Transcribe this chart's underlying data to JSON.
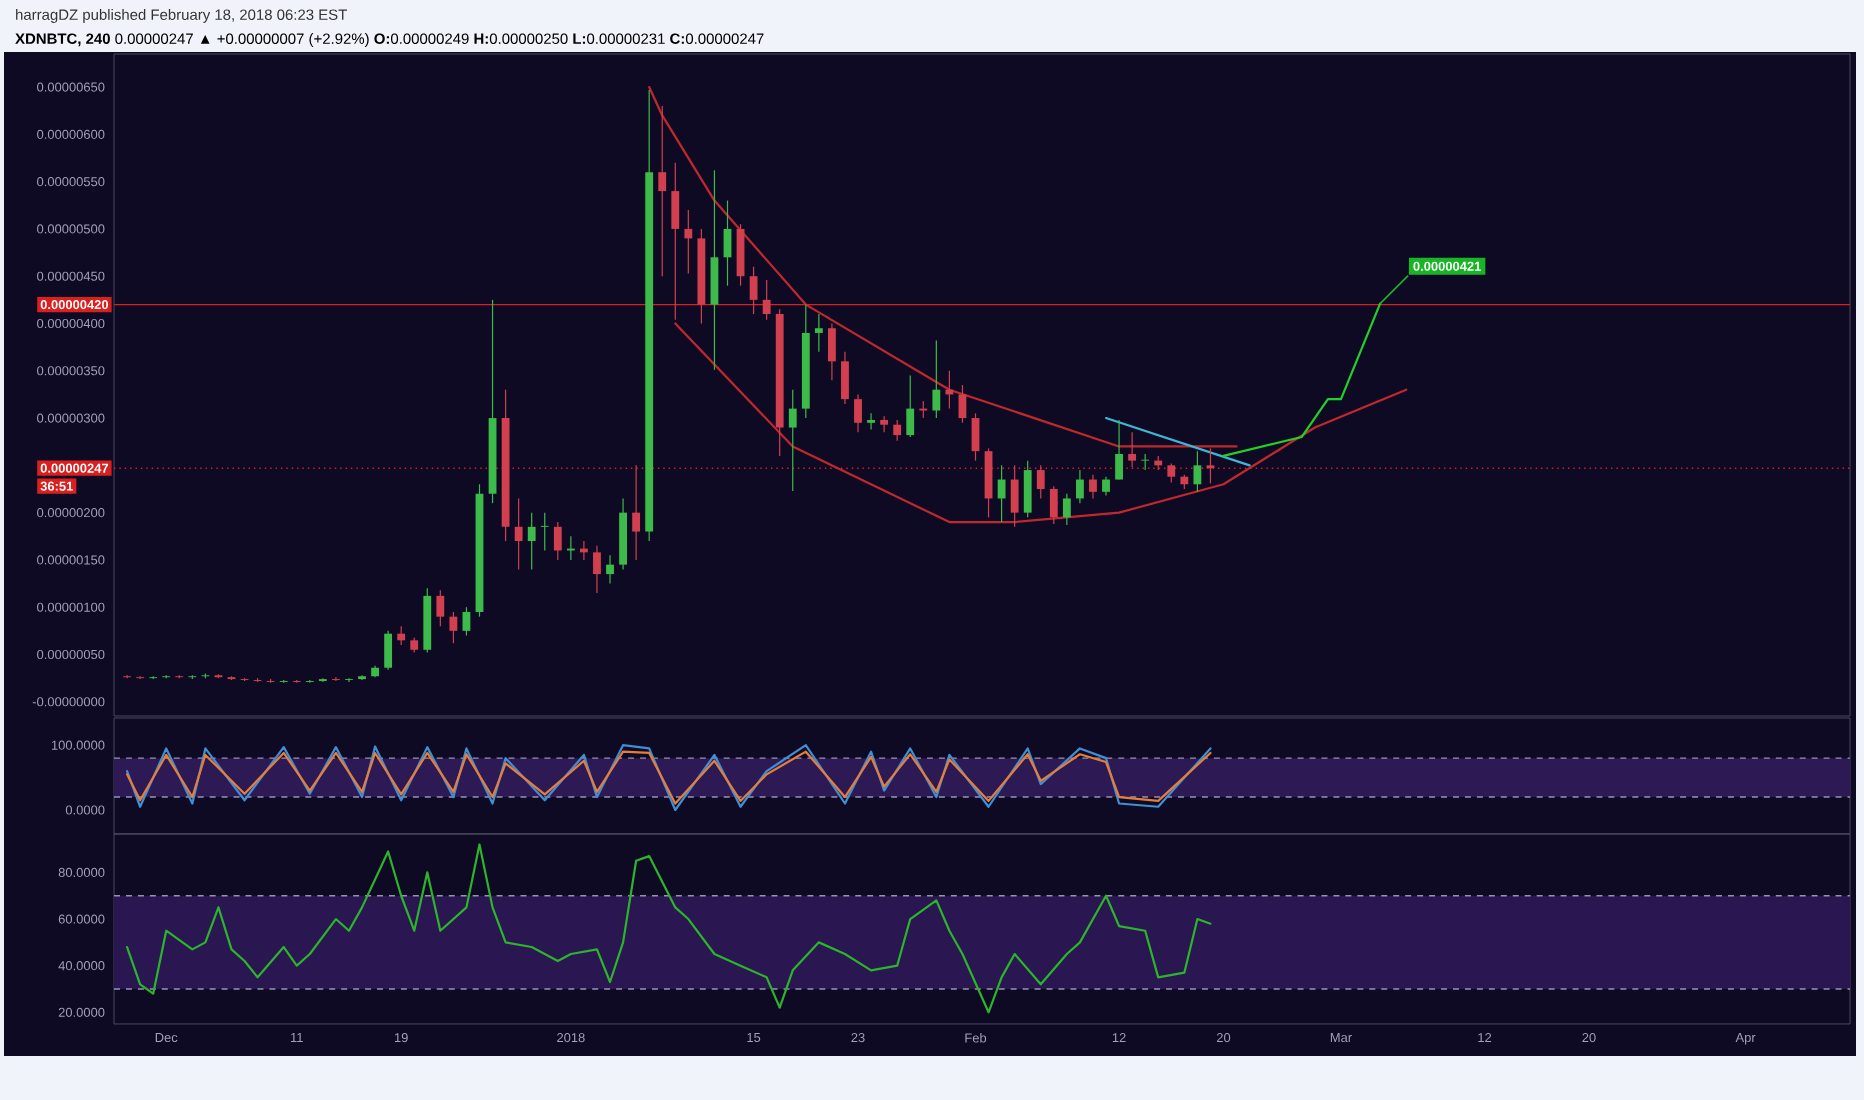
{
  "chart_data": [
    {
      "type": "candlestick",
      "title": "harragDZ published February 18, 2018 06:23 EST",
      "subtitle": "**XDNBTC, 240** 0.00000247 ▲ +0.00000007 (+2.92%) **O:**0.00000249 **H:**0.00000250 **L:**0.00000231 **C:**0.00000247",
      "x": [
        "2017-11-28",
        "2017-11-29",
        "2017-11-30",
        "2017-12-01",
        "2017-12-02",
        "2017-12-03",
        "2017-12-04",
        "2017-12-05",
        "2017-12-06",
        "2017-12-07",
        "2017-12-08",
        "2017-12-09",
        "2017-12-10",
        "2017-12-11",
        "2017-12-12",
        "2017-12-13",
        "2017-12-14",
        "2017-12-15",
        "2017-12-16",
        "2017-12-17",
        "2017-12-18",
        "2017-12-19",
        "2017-12-20",
        "2017-12-21",
        "2017-12-22",
        "2017-12-23",
        "2017-12-24",
        "2017-12-25",
        "2017-12-26",
        "2017-12-27",
        "2017-12-28",
        "2017-12-29",
        "2017-12-30",
        "2017-12-31",
        "2018-01-01",
        "2018-01-02",
        "2018-01-03",
        "2018-01-04",
        "2018-01-05",
        "2018-01-06",
        "2018-01-07",
        "2018-01-08",
        "2018-01-09",
        "2018-01-10",
        "2018-01-11",
        "2018-01-12",
        "2018-01-13",
        "2018-01-14",
        "2018-01-15",
        "2018-01-16",
        "2018-01-17",
        "2018-01-18",
        "2018-01-19",
        "2018-01-20",
        "2018-01-21",
        "2018-01-22",
        "2018-01-23",
        "2018-01-24",
        "2018-01-25",
        "2018-01-26",
        "2018-01-27",
        "2018-01-28",
        "2018-01-29",
        "2018-01-30",
        "2018-01-31",
        "2018-02-01",
        "2018-02-02",
        "2018-02-03",
        "2018-02-04",
        "2018-02-05",
        "2018-02-06",
        "2018-02-07",
        "2018-02-08",
        "2018-02-09",
        "2018-02-10",
        "2018-02-11",
        "2018-02-12",
        "2018-02-13",
        "2018-02-14",
        "2018-02-15",
        "2018-02-16",
        "2018-02-17",
        "2018-02-18",
        "2018-02-19"
      ],
      "ohlc": [
        [
          2.7e-07,
          2.8e-07,
          2.5e-07,
          2.6e-07
        ],
        [
          2.6e-07,
          2.7e-07,
          2.4e-07,
          2.5e-07
        ],
        [
          2.5e-07,
          2.7e-07,
          2.4e-07,
          2.6e-07
        ],
        [
          2.6e-07,
          2.8e-07,
          2.5e-07,
          2.7e-07
        ],
        [
          2.7e-07,
          2.8e-07,
          2.5e-07,
          2.6e-07
        ],
        [
          2.6e-07,
          2.8e-07,
          2.4e-07,
          2.7e-07
        ],
        [
          2.7e-07,
          3e-07,
          2.5e-07,
          2.8e-07
        ],
        [
          2.8e-07,
          2.9e-07,
          2.5e-07,
          2.6e-07
        ],
        [
          2.6e-07,
          2.7e-07,
          2.3e-07,
          2.4e-07
        ],
        [
          2.4e-07,
          2.5e-07,
          2.2e-07,
          2.3e-07
        ],
        [
          2.3e-07,
          2.5e-07,
          2.1e-07,
          2.2e-07
        ],
        [
          2.2e-07,
          2.4e-07,
          2e-07,
          2.1e-07
        ],
        [
          2.1e-07,
          2.3e-07,
          2e-07,
          2.2e-07
        ],
        [
          2.2e-07,
          2.3e-07,
          2e-07,
          2.1e-07
        ],
        [
          2.1e-07,
          2.3e-07,
          2e-07,
          2.2e-07
        ],
        [
          2.2e-07,
          2.5e-07,
          2.1e-07,
          2.4e-07
        ],
        [
          2.4e-07,
          2.6e-07,
          2.2e-07,
          2.3e-07
        ],
        [
          2.3e-07,
          2.5e-07,
          2.1e-07,
          2.4e-07
        ],
        [
          2.4e-07,
          2.8e-07,
          2.3e-07,
          2.7e-07
        ],
        [
          2.7e-07,
          3.8e-07,
          2.6e-07,
          3.6e-07
        ],
        [
          3.6e-07,
          7.5e-07,
          3.4e-07,
          7.2e-07
        ],
        [
          7.2e-07,
          8e-07,
          6e-07,
          6.5e-07
        ],
        [
          6.5e-07,
          6.8e-07,
          5.2e-07,
          5.5e-07
        ],
        [
          5.5e-07,
          1.2e-06,
          5.2e-07,
          1.12e-06
        ],
        [
          1.12e-06,
          1.18e-06,
          8e-07,
          9e-07
        ],
        [
          9e-07,
          9.5e-07,
          6.2e-07,
          7.5e-07
        ],
        [
          7.5e-07,
          1e-06,
          7e-07,
          9.5e-07
        ],
        [
          9.5e-07,
          2.3e-06,
          9e-07,
          2.2e-06
        ],
        [
          2.2e-06,
          4.25e-06,
          2.1e-06,
          3e-06
        ],
        [
          3e-06,
          3.3e-06,
          1.7e-06,
          1.85e-06
        ],
        [
          1.85e-06,
          2.15e-06,
          1.4e-06,
          1.7e-06
        ],
        [
          1.7e-06,
          2e-06,
          1.4e-06,
          1.85e-06
        ],
        [
          1.85e-06,
          2e-06,
          1.6e-06,
          1.86e-06
        ],
        [
          1.85e-06,
          1.9e-06,
          1.5e-06,
          1.6e-06
        ],
        [
          1.6e-06,
          1.75e-06,
          1.5e-06,
          1.62e-06
        ],
        [
          1.62e-06,
          1.7e-06,
          1.5e-06,
          1.58e-06
        ],
        [
          1.58e-06,
          1.65e-06,
          1.15e-06,
          1.35e-06
        ],
        [
          1.35e-06,
          1.55e-06,
          1.25e-06,
          1.45e-06
        ],
        [
          1.45e-06,
          2.15e-06,
          1.4e-06,
          2e-06
        ],
        [
          2e-06,
          2.5e-06,
          1.5e-06,
          1.8e-06
        ],
        [
          1.8e-06,
          6.47e-06,
          1.7e-06,
          5.6e-06
        ],
        [
          5.6e-06,
          6.3e-06,
          4.5e-06,
          5.4e-06
        ],
        [
          5.4e-06,
          5.7e-06,
          4.04e-06,
          5e-06
        ],
        [
          5e-06,
          5.2e-06,
          4.53e-06,
          4.9e-06
        ],
        [
          4.9e-06,
          5e-06,
          4e-06,
          4.2e-06
        ],
        [
          4.2e-06,
          5.62e-06,
          3.51e-06,
          4.7e-06
        ],
        [
          4.7e-06,
          5.3e-06,
          4.4e-06,
          5e-06
        ],
        [
          5e-06,
          5.05e-06,
          4.4e-06,
          4.5e-06
        ],
        [
          4.5e-06,
          4.6e-06,
          4.1e-06,
          4.25e-06
        ],
        [
          4.25e-06,
          4.46e-06,
          4.04e-06,
          4.1e-06
        ],
        [
          4.1e-06,
          4.15e-06,
          2.6e-06,
          2.9e-06
        ],
        [
          2.9e-06,
          3.3e-06,
          2.23e-06,
          3.1e-06
        ],
        [
          3.1e-06,
          4.2e-06,
          3e-06,
          3.9e-06
        ],
        [
          3.9e-06,
          4.1e-06,
          3.7e-06,
          3.95e-06
        ],
        [
          3.95e-06,
          4e-06,
          3.4e-06,
          3.6e-06
        ],
        [
          3.6e-06,
          3.7e-06,
          3.15e-06,
          3.2e-06
        ],
        [
          3.2e-06,
          3.25e-06,
          2.85e-06,
          2.95e-06
        ],
        [
          2.95e-06,
          3.05e-06,
          2.88e-06,
          2.98e-06
        ],
        [
          2.98e-06,
          3.02e-06,
          2.85e-06,
          2.93e-06
        ],
        [
          2.93e-06,
          2.98e-06,
          2.76e-06,
          2.82e-06
        ],
        [
          2.82e-06,
          3.45e-06,
          2.8e-06,
          3.1e-06
        ],
        [
          3.1e-06,
          3.18e-06,
          3e-06,
          3.08e-06
        ],
        [
          3.08e-06,
          3.82e-06,
          3e-06,
          3.3e-06
        ],
        [
          3.3e-06,
          3.5e-06,
          3.1e-06,
          3.25e-06
        ],
        [
          3.25e-06,
          3.35e-06,
          2.95e-06,
          3e-06
        ],
        [
          3e-06,
          3.05e-06,
          2.55e-06,
          2.65e-06
        ],
        [
          2.65e-06,
          2.68e-06,
          1.95e-06,
          2.15e-06
        ],
        [
          2.15e-06,
          2.5e-06,
          1.9e-06,
          2.35e-06
        ],
        [
          2.35e-06,
          2.5e-06,
          1.85e-06,
          2e-06
        ],
        [
          2e-06,
          2.55e-06,
          1.95e-06,
          2.45e-06
        ],
        [
          2.45e-06,
          2.5e-06,
          2.15e-06,
          2.25e-06
        ],
        [
          2.25e-06,
          2.28e-06,
          1.88e-06,
          1.95e-06
        ],
        [
          1.95e-06,
          2.2e-06,
          1.87e-06,
          2.15e-06
        ],
        [
          2.15e-06,
          2.45e-06,
          2.1e-06,
          2.35e-06
        ],
        [
          2.35e-06,
          2.4e-06,
          2.15e-06,
          2.22e-06
        ],
        [
          2.22e-06,
          2.38e-06,
          2.18e-06,
          2.35e-06
        ],
        [
          2.35e-06,
          2.98e-06,
          2.35e-06,
          2.62e-06
        ],
        [
          2.62e-06,
          2.85e-06,
          2.48e-06,
          2.55e-06
        ],
        [
          2.55e-06,
          2.62e-06,
          2.45e-06,
          2.56e-06
        ],
        [
          2.55e-06,
          2.6e-06,
          2.45e-06,
          2.5e-06
        ],
        [
          2.5e-06,
          2.52e-06,
          2.32e-06,
          2.38e-06
        ],
        [
          2.38e-06,
          2.4e-06,
          2.25e-06,
          2.3e-06
        ],
        [
          2.3e-06,
          2.65e-06,
          2.22e-06,
          2.5e-06
        ],
        [
          2.5e-06,
          2.68e-06,
          2.31e-06,
          2.47e-06
        ]
      ],
      "colors": [
        "#d2404f",
        "#d2404f",
        "#3dbb4a",
        "#3dbb4a",
        "#d2404f",
        "#3dbb4a",
        "#3dbb4a",
        "#d2404f",
        "#d2404f",
        "#d2404f",
        "#d2404f",
        "#d2404f",
        "#3dbb4a",
        "#d2404f",
        "#3dbb4a",
        "#3dbb4a",
        "#d2404f",
        "#3dbb4a",
        "#3dbb4a",
        "#3dbb4a",
        "#3dbb4a",
        "#d2404f",
        "#d2404f",
        "#3dbb4a",
        "#d2404f",
        "#d2404f",
        "#3dbb4a",
        "#3dbb4a",
        "#3dbb4a",
        "#d2404f",
        "#d2404f",
        "#3dbb4a",
        "#3dbb4a",
        "#d2404f",
        "#3dbb4a",
        "#d2404f",
        "#d2404f",
        "#3dbb4a",
        "#3dbb4a",
        "#d2404f",
        "#3dbb4a",
        "#d2404f",
        "#d2404f",
        "#d2404f",
        "#d2404f",
        "#3dbb4a",
        "#3dbb4a",
        "#d2404f",
        "#d2404f",
        "#d2404f",
        "#d2404f",
        "#3dbb4a",
        "#3dbb4a",
        "#3dbb4a",
        "#d2404f",
        "#d2404f",
        "#d2404f",
        "#3dbb4a",
        "#d2404f",
        "#d2404f",
        "#3dbb4a",
        "#d2404f",
        "#3dbb4a",
        "#d2404f",
        "#d2404f",
        "#d2404f",
        "#d2404f",
        "#3dbb4a",
        "#d2404f",
        "#3dbb4a",
        "#d2404f",
        "#d2404f",
        "#3dbb4a",
        "#3dbb4a",
        "#d2404f",
        "#3dbb4a",
        "#3dbb4a",
        "#d2404f",
        "#3dbb4a",
        "#d2404f",
        "#d2404f",
        "#d2404f",
        "#3dbb4a",
        "#d2404f"
      ],
      "series": [
        {
          "type": "line",
          "color": "#c0282d",
          "x": [
            "2018-01-07",
            "2018-01-08",
            "2018-01-12",
            "2018-01-19",
            "2018-01-30",
            "2018-02-12",
            "2018-02-21"
          ],
          "values": [
            6.5e-06,
            6.2e-06,
            5.3e-06,
            4.2e-06,
            3.3e-06,
            2.7e-06,
            2.7e-06
          ]
        },
        {
          "type": "line",
          "color": "#c0282d",
          "x": [
            "2018-01-09",
            "2018-01-18",
            "2018-01-30",
            "2018-02-04",
            "2018-02-12",
            "2018-02-20",
            "2018-02-27",
            "2018-03-06"
          ],
          "values": [
            4e-06,
            2.7e-06,
            1.9e-06,
            1.9e-06,
            2e-06,
            2.3e-06,
            2.9e-06,
            3.3e-06
          ]
        },
        {
          "type": "line",
          "color": "#3fb6d4",
          "x": [
            "2018-02-11",
            "2018-02-22"
          ],
          "values": [
            3e-06,
            2.5e-06
          ]
        },
        {
          "type": "line",
          "color": "#22d126",
          "x": [
            "2018-02-20",
            "2018-02-26",
            "2018-02-28",
            "2018-03-01",
            "2018-03-04"
          ],
          "values": [
            2.6e-06,
            2.8e-06,
            3.2e-06,
            3.2e-06,
            4.21e-06
          ]
        }
      ],
      "xlim": [
        "2017-11-27",
        "2018-04-09"
      ],
      "ylim": [
        -1.5e-07,
        6.85e-06
      ],
      "yticks": [
        {
          "value": 0,
          "label": "-0.00000000"
        },
        {
          "value": 5e-07,
          "label": "0.00000050"
        },
        {
          "value": 1e-06,
          "label": "0.00000100"
        },
        {
          "value": 1.5e-06,
          "label": "0.00000150"
        },
        {
          "value": 2e-06,
          "label": "0.00000200"
        },
        {
          "value": 3e-06,
          "label": "0.00000300"
        },
        {
          "value": 3.5e-06,
          "label": "0.00000350"
        },
        {
          "value": 4e-06,
          "label": "0.00000400"
        },
        {
          "value": 4.5e-06,
          "label": "0.00000450"
        },
        {
          "value": 5e-06,
          "label": "0.00000500"
        },
        {
          "value": 5.5e-06,
          "label": "0.00000550"
        },
        {
          "value": 6e-06,
          "label": "0.00000600"
        },
        {
          "value": 6.5e-06,
          "label": "0.00000650"
        }
      ],
      "ref_lines": [
        {
          "axis": "y",
          "value": 4.2e-06,
          "label": "0.00000420",
          "color": "#d9201f",
          "line_style": "solid"
        },
        {
          "axis": "y",
          "value": 2.47e-06,
          "label": "0.00000247",
          "color": "#d9201f",
          "line_style": "dotted"
        }
      ],
      "annotations": [
        "36:51",
        {
          "text": "0.00000421",
          "x": "2018-03-04",
          "y": 4.21e-06
        }
      ],
      "tick_labels": "y"
    },
    {
      "type": "line",
      "series": [
        {
          "color": "#3d8fd6",
          "x": [
            "2017-11-28",
            "2017-11-29",
            "2017-12-01",
            "2017-12-03",
            "2017-12-04",
            "2017-12-07",
            "2017-12-10",
            "2017-12-12",
            "2017-12-14",
            "2017-12-16",
            "2017-12-17",
            "2017-12-19",
            "2017-12-21",
            "2017-12-23",
            "2017-12-24",
            "2017-12-26",
            "2017-12-27",
            "2017-12-30",
            "2018-01-02",
            "2018-01-03",
            "2018-01-05",
            "2018-01-07",
            "2018-01-09",
            "2018-01-12",
            "2018-01-14",
            "2018-01-16",
            "2018-01-19",
            "2018-01-22",
            "2018-01-24",
            "2018-01-25",
            "2018-01-27",
            "2018-01-29",
            "2018-01-30",
            "2018-02-02",
            "2018-02-05",
            "2018-02-06",
            "2018-02-09",
            "2018-02-11",
            "2018-02-12",
            "2018-02-15",
            "2018-02-19"
          ],
          "values": [
            60,
            5,
            95,
            10,
            95,
            15,
            97,
            25,
            97,
            20,
            98,
            15,
            97,
            20,
            95,
            10,
            80,
            15,
            85,
            20,
            100,
            95,
            0,
            85,
            5,
            60,
            100,
            10,
            90,
            30,
            95,
            20,
            85,
            5,
            95,
            40,
            95,
            80,
            10,
            5,
            95
          ]
        },
        {
          "color": "#e67e3a",
          "x": [
            "2017-11-28",
            "2017-11-29",
            "2017-12-01",
            "2017-12-03",
            "2017-12-04",
            "2017-12-07",
            "2017-12-10",
            "2017-12-12",
            "2017-12-14",
            "2017-12-16",
            "2017-12-17",
            "2017-12-19",
            "2017-12-21",
            "2017-12-23",
            "2017-12-24",
            "2017-12-26",
            "2017-12-27",
            "2017-12-30",
            "2018-01-02",
            "2018-01-03",
            "2018-01-05",
            "2018-01-07",
            "2018-01-09",
            "2018-01-12",
            "2018-01-14",
            "2018-01-16",
            "2018-01-19",
            "2018-01-22",
            "2018-01-24",
            "2018-01-25",
            "2018-01-27",
            "2018-01-29",
            "2018-01-30",
            "2018-02-02",
            "2018-02-05",
            "2018-02-06",
            "2018-02-09",
            "2018-02-11",
            "2018-02-12",
            "2018-02-15",
            "2018-02-19"
          ],
          "values": [
            55,
            15,
            85,
            20,
            85,
            25,
            88,
            30,
            88,
            28,
            88,
            24,
            88,
            28,
            86,
            20,
            72,
            24,
            76,
            28,
            90,
            88,
            10,
            76,
            14,
            55,
            90,
            20,
            82,
            36,
            86,
            28,
            78,
            14,
            86,
            45,
            86,
            74,
            20,
            14,
            88
          ]
        }
      ],
      "xlim": [
        "2017-11-27",
        "2018-04-09"
      ],
      "ylim": [
        -37,
        142
      ],
      "yticks": [
        {
          "value": 100,
          "label": "100.0000"
        },
        {
          "value": 0,
          "label": "0.0000"
        }
      ],
      "bands": [
        {
          "axis": "y",
          "from": 20,
          "to": 80,
          "color": "#2d1a55"
        }
      ],
      "ref_lines": [
        {
          "axis": "y",
          "value": 80,
          "color": "#9893b0",
          "line_style": "dashed"
        },
        {
          "axis": "y",
          "value": 20,
          "color": "#9893b0",
          "line_style": "dashed"
        }
      ],
      "tick_labels": "y"
    },
    {
      "type": "line",
      "series": [
        {
          "color": "#2bb52b",
          "x": [
            "2017-11-28",
            "2017-11-29",
            "2017-11-30",
            "2017-12-01",
            "2017-12-03",
            "2017-12-04",
            "2017-12-05",
            "2017-12-06",
            "2017-12-07",
            "2017-12-08",
            "2017-12-10",
            "2017-12-11",
            "2017-12-12",
            "2017-12-14",
            "2017-12-15",
            "2017-12-16",
            "2017-12-18",
            "2017-12-19",
            "2017-12-20",
            "2017-12-21",
            "2017-12-22",
            "2017-12-24",
            "2017-12-25",
            "2017-12-26",
            "2017-12-27",
            "2017-12-29",
            "2017-12-31",
            "2018-01-01",
            "2018-01-03",
            "2018-01-04",
            "2018-01-05",
            "2018-01-06",
            "2018-01-07",
            "2018-01-09",
            "2018-01-10",
            "2018-01-12",
            "2018-01-14",
            "2018-01-16",
            "2018-01-17",
            "2018-01-18",
            "2018-01-20",
            "2018-01-22",
            "2018-01-24",
            "2018-01-26",
            "2018-01-27",
            "2018-01-29",
            "2018-01-30",
            "2018-01-31",
            "2018-02-02",
            "2018-02-03",
            "2018-02-04",
            "2018-02-06",
            "2018-02-08",
            "2018-02-09",
            "2018-02-11",
            "2018-02-12",
            "2018-02-14",
            "2018-02-15",
            "2018-02-17",
            "2018-02-18",
            "2018-02-19"
          ],
          "values": [
            48,
            32,
            28,
            55,
            47,
            50,
            65,
            47,
            42,
            35,
            48,
            40,
            45,
            60,
            55,
            65,
            89,
            70,
            55,
            80,
            55,
            65,
            92,
            65,
            50,
            48,
            42,
            45,
            47,
            33,
            50,
            85,
            87,
            65,
            60,
            45,
            40,
            35,
            22,
            38,
            50,
            45,
            38,
            40,
            60,
            68,
            55,
            45,
            20,
            35,
            45,
            32,
            45,
            50,
            70,
            57,
            55,
            35,
            37,
            60,
            58
          ]
        }
      ],
      "xlim": [
        "2017-11-27",
        "2018-04-09"
      ],
      "xticks": [
        {
          "value": "2017-12-01",
          "label": "Dec"
        },
        {
          "value": "2017-12-11",
          "label": "11"
        },
        {
          "value": "2017-12-19",
          "label": "19"
        },
        {
          "value": "2018-01-01",
          "label": "2018"
        },
        {
          "value": "2018-01-15",
          "label": "15"
        },
        {
          "value": "2018-01-23",
          "label": "23"
        },
        {
          "value": "2018-02-01",
          "label": "Feb"
        },
        {
          "value": "2018-02-12",
          "label": "12"
        },
        {
          "value": "2018-02-20",
          "label": "20"
        },
        {
          "value": "2018-03-01",
          "label": "Mar"
        },
        {
          "value": "2018-03-12",
          "label": "12"
        },
        {
          "value": "2018-03-20",
          "label": "20"
        },
        {
          "value": "2018-04-01",
          "label": "Apr"
        }
      ],
      "ylim": [
        15,
        96.5
      ],
      "yticks": [
        {
          "value": 80,
          "label": "80.0000"
        },
        {
          "value": 60,
          "label": "60.0000"
        },
        {
          "value": 40,
          "label": "40.0000"
        },
        {
          "value": 20,
          "label": "20.0000"
        }
      ],
      "bands": [
        {
          "axis": "y",
          "from": 30,
          "to": 70,
          "color": "#2a1650"
        }
      ],
      "ref_lines": [
        {
          "axis": "y",
          "value": 70,
          "color": "#9893b0",
          "line_style": "dashed"
        },
        {
          "axis": "y",
          "value": 30,
          "color": "#9893b0",
          "line_style": "dashed"
        }
      ]
    }
  ]
}
